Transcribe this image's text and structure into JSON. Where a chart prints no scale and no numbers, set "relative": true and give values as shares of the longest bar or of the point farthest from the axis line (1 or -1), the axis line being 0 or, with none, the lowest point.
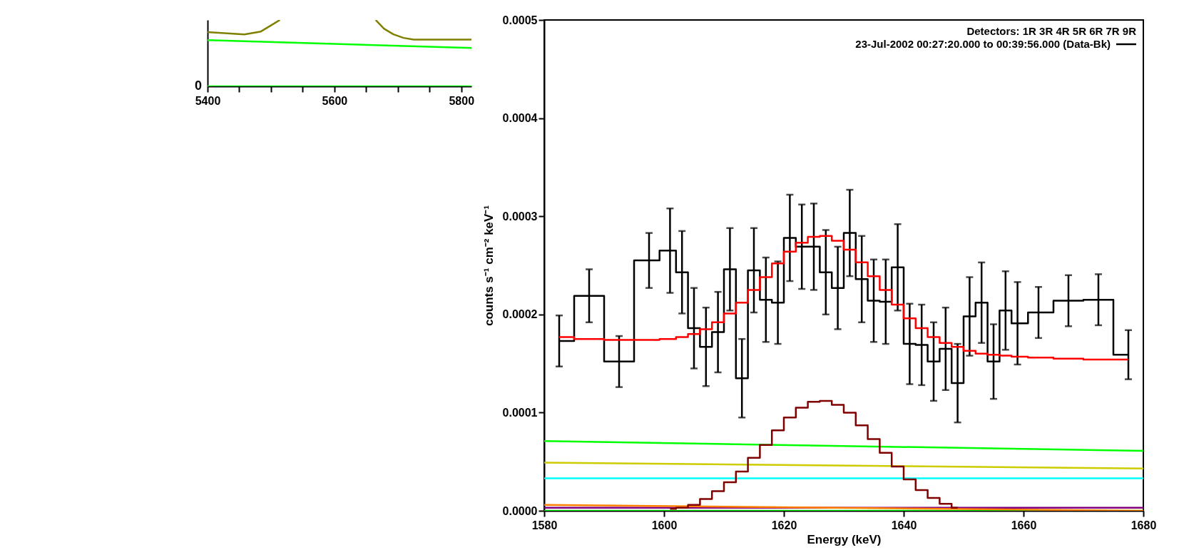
{
  "chart_data": [
    {
      "type": "line",
      "relative": true,
      "xlim": [
        5400,
        5816
      ],
      "xticks": [
        5400,
        {
          "value": 5450,
          "label": null
        },
        {
          "value": 5500,
          "label": null
        },
        {
          "value": 5550,
          "label": null
        },
        5600,
        {
          "value": 5650,
          "label": null
        },
        {
          "value": 5700,
          "label": null
        },
        {
          "value": 5750,
          "label": null
        },
        5800
      ],
      "series": [
        {
          "color": "#808000",
          "x": [
            5400,
            5458,
            5484,
            5499,
            5514,
            5590,
            5665,
            5678,
            5693,
            5709,
            5725,
            5816
          ],
          "values": [
            0.817,
            0.783,
            0.826,
            0.913,
            1.0,
            null,
            1.0,
            0.87,
            0.783,
            0.73,
            0.704,
            0.704
          ]
        },
        {
          "color": "#00ff00",
          "x": [
            5400,
            5816
          ],
          "values": [
            0.696,
            0.578
          ]
        },
        {
          "color": "#00ff00",
          "x": [
            5400,
            5816
          ],
          "values": [
            0,
            0
          ]
        }
      ],
      "annotations": [
        {
          "text": "0",
          "x": 5400,
          "y": 0
        }
      ]
    },
    {
      "type": "step",
      "xlabel": "Energy (keV)",
      "ylabel": "counts s⁻¹ cm⁻² keV⁻¹",
      "xlim": [
        1580,
        1680
      ],
      "xticks": [
        1580,
        1600,
        1620,
        1640,
        1660,
        1680
      ],
      "ylim": [
        0,
        0.0005
      ],
      "yticks": [
        {
          "value": 0,
          "label": "0.0000"
        },
        {
          "value": 0.0001,
          "label": "0.0001"
        },
        {
          "value": 0.0002,
          "label": "0.0002"
        },
        {
          "value": 0.0003,
          "label": "0.0003"
        },
        {
          "value": 0.0004,
          "label": "0.0004"
        },
        {
          "value": 0.0005,
          "label": "0.0005"
        }
      ],
      "grid": false,
      "legend": "top right",
      "legend_title": "Detectors: 1R 3R 4R 5R 6R 7R 9R",
      "x": [
        1582.5,
        1587.5,
        1592.5,
        1597.5,
        1601,
        1603,
        1605,
        1607,
        1609,
        1611,
        1613,
        1615,
        1617,
        1619,
        1621,
        1623,
        1625,
        1627,
        1629,
        1631,
        1633,
        1635,
        1637,
        1639,
        1641,
        1643,
        1645,
        1647,
        1649,
        1651,
        1653,
        1655,
        1657,
        1659,
        1662.5,
        1667.5,
        1672.5,
        1677.5
      ],
      "series": [
        {
          "type": "line",
          "color": "#00ff00",
          "x": [
            1580,
            1680
          ],
          "values": [
            0,
            0
          ]
        },
        {
          "type": "line",
          "color": "#00ff00",
          "x": [
            1580,
            1680
          ],
          "values": [
            7.1e-05,
            6.1e-05
          ]
        },
        {
          "type": "line",
          "color": "#cccc00",
          "x": [
            1580,
            1680
          ],
          "values": [
            4.9e-05,
            4.3e-05
          ]
        },
        {
          "type": "line",
          "color": "#00ffff",
          "x": [
            1580,
            1680
          ],
          "values": [
            3.3e-05,
            3.3e-05
          ]
        },
        {
          "type": "line",
          "color": "#800080",
          "x": [
            1580,
            1680
          ],
          "values": [
            3e-06,
            3e-06
          ]
        },
        {
          "type": "line",
          "color": "#ff8000",
          "x": [
            1580,
            1680
          ],
          "values": [
            6e-06,
            0
          ]
        },
        {
          "color": "#800000",
          "values": [
            null,
            null,
            null,
            null,
            2e-06,
            3e-06,
            6e-06,
            1.2e-05,
            2e-05,
            2.9e-05,
            4e-05,
            5.4e-05,
            6.7e-05,
            8.2e-05,
            9.5e-05,
            0.000105,
            0.000111,
            0.000112,
            0.000108,
            0.0001,
            8.7e-05,
            7.3e-05,
            5.9e-05,
            4.5e-05,
            3.2e-05,
            2.1e-05,
            1.3e-05,
            7e-06,
            3e-06,
            null,
            null,
            null,
            null,
            null,
            null,
            null,
            null,
            null
          ]
        },
        {
          "name": "23-Jul-2002 00:27:20.000 to 00:39:56.000 (Data-Bk)",
          "color": "#000000",
          "values": [
            0.000173,
            0.000219,
            0.000152,
            0.000255,
            0.000265,
            0.000243,
            0.000186,
            0.000167,
            0.000182,
            0.000246,
            0.000135,
            0.000245,
            0.000215,
            0.000212,
            0.000278,
            0.000269,
            0.000269,
            0.000243,
            0.000227,
            0.000283,
            0.000236,
            0.000214,
            0.000213,
            0.000248,
            0.00017,
            0.000169,
            0.000152,
            0.000165,
            0.00013,
            0.000198,
            0.000212,
            0.000152,
            0.000204,
            0.000191,
            0.000202,
            0.000214,
            0.000215,
            0.000159
          ],
          "errors": [
            2.6e-05,
            2.7e-05,
            2.6e-05,
            2.8e-05,
            4.3e-05,
            4.2e-05,
            4.1e-05,
            4e-05,
            4.1e-05,
            4.2e-05,
            4e-05,
            4.3e-05,
            4.3e-05,
            4.2e-05,
            4.4e-05,
            4.3e-05,
            4.4e-05,
            4.3e-05,
            4.2e-05,
            4.4e-05,
            4.4e-05,
            4.2e-05,
            4.3e-05,
            4.4e-05,
            4.1e-05,
            4.1e-05,
            4e-05,
            4.2e-05,
            4e-05,
            4e-05,
            4.1e-05,
            3.8e-05,
            4e-05,
            4.2e-05,
            2.6e-05,
            2.6e-05,
            2.6e-05,
            2.5e-05
          ]
        },
        {
          "color": "#ff0000",
          "values": [
            0.000177,
            0.000175,
            0.000174,
            0.000174,
            0.000175,
            0.000177,
            0.00018,
            0.000185,
            0.000192,
            0.000201,
            0.000212,
            0.000225,
            0.000238,
            0.000252,
            0.000264,
            0.000273,
            0.000279,
            0.00028,
            0.000275,
            0.000266,
            0.000253,
            0.000239,
            0.000225,
            0.00021,
            0.000196,
            0.000186,
            0.000177,
            0.000171,
            0.000167,
            0.000163,
            0.00016,
            0.000159,
            0.000158,
            0.000157,
            0.000156,
            0.000155,
            0.000154,
            0.000154
          ]
        }
      ]
    }
  ]
}
